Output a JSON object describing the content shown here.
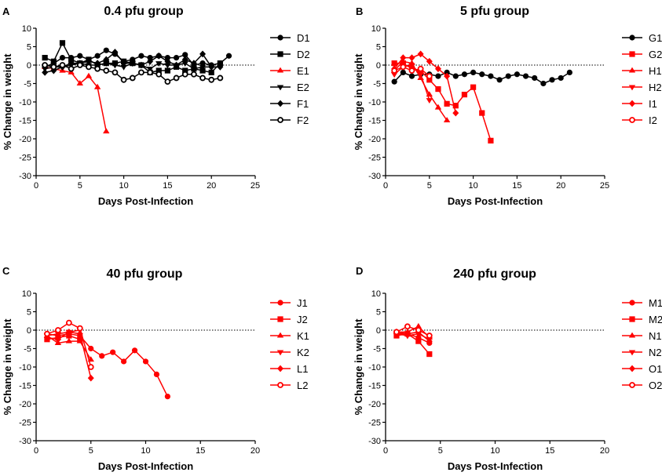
{
  "colors": {
    "black": "#000000",
    "red": "#ff0000"
  },
  "chart_data": [
    {
      "type": "line",
      "letter": "A",
      "title": "0.4 pfu group",
      "xlabel": "Days Post-Infection",
      "ylabel": "% Change in weight",
      "xlim": [
        0,
        25
      ],
      "xticks": [
        0,
        5,
        10,
        15,
        20,
        25
      ],
      "ylim": [
        -30,
        10
      ],
      "yticks": [
        10,
        5,
        0,
        -5,
        -10,
        -15,
        -20,
        -25,
        -30
      ],
      "reference_line": 0,
      "series": [
        {
          "name": "D1",
          "color": "#000000",
          "marker": "circle",
          "x": [
            1,
            2,
            3,
            4,
            5,
            6,
            7,
            8,
            9,
            10,
            11,
            12,
            13,
            14,
            15,
            16,
            17,
            18,
            19,
            20,
            21,
            22
          ],
          "y": [
            -0.5,
            0.5,
            2,
            2,
            2.5,
            1.5,
            2.5,
            4,
            3,
            1,
            1.5,
            2.5,
            2,
            2.5,
            2,
            2,
            2.8,
            0,
            0.5,
            0,
            0.5,
            2.5
          ]
        },
        {
          "name": "D2",
          "color": "#000000",
          "marker": "square",
          "x": [
            1,
            2,
            3,
            4,
            5,
            6,
            7,
            8,
            9,
            10,
            11,
            12,
            13,
            14,
            15,
            16,
            17,
            18,
            19,
            20,
            21
          ],
          "y": [
            2,
            1,
            6,
            1.5,
            0.5,
            1.5,
            0,
            0.5,
            0.5,
            1,
            0.5,
            0,
            -2,
            -1.5,
            -1.5,
            -0.5,
            -1.5,
            -1,
            -1.5,
            -2,
            0.5
          ]
        },
        {
          "name": "E1",
          "color": "#ff0000",
          "marker": "triangle-up",
          "x": [
            1,
            2,
            3,
            4,
            5,
            6,
            7,
            8
          ],
          "y": [
            -0.5,
            -1,
            -1.5,
            -2,
            -5,
            -3,
            -6,
            -18
          ]
        },
        {
          "name": "E2",
          "color": "#000000",
          "marker": "triangle-down",
          "x": [
            1,
            2,
            3,
            4,
            5,
            6,
            7,
            8,
            9,
            10,
            11,
            12,
            13,
            14,
            15,
            16,
            17,
            18,
            19,
            20,
            21
          ],
          "y": [
            -1,
            -0.5,
            -0.5,
            0,
            0.5,
            0,
            0,
            0.5,
            0,
            -0.5,
            0.5,
            0,
            -1,
            0.5,
            0,
            0,
            0.5,
            -1,
            -0.5,
            -0.5,
            -0.5
          ]
        },
        {
          "name": "F1",
          "color": "#000000",
          "marker": "diamond",
          "x": [
            1,
            2,
            3,
            4,
            5,
            6,
            7,
            8,
            9,
            10,
            11,
            12,
            13,
            14,
            15,
            16,
            17,
            18,
            19,
            20,
            21
          ],
          "y": [
            -2,
            -1.5,
            -0.5,
            0.5,
            0.5,
            1,
            0.5,
            1.5,
            3.5,
            0.5,
            0.5,
            0,
            1,
            2.5,
            1,
            0,
            1.5,
            0.5,
            3,
            -0.5,
            -0.5
          ]
        },
        {
          "name": "F2",
          "color": "#000000",
          "marker": "circle-open",
          "x": [
            1,
            2,
            3,
            4,
            5,
            6,
            7,
            8,
            9,
            10,
            11,
            12,
            13,
            14,
            15,
            16,
            17,
            18,
            19,
            20,
            21
          ],
          "y": [
            0,
            -0.5,
            0,
            -1,
            0,
            -0.5,
            -1,
            -1.5,
            -2,
            -4,
            -3.5,
            -2,
            -2,
            -2.5,
            -4.5,
            -3.5,
            -2.5,
            -2.5,
            -3.5,
            -4,
            -3.5
          ]
        }
      ]
    },
    {
      "type": "line",
      "letter": "B",
      "title": "5 pfu group",
      "xlabel": "Days Post-Infection",
      "ylabel": "% Change in weight",
      "xlim": [
        0,
        25
      ],
      "xticks": [
        0,
        5,
        10,
        15,
        20,
        25
      ],
      "ylim": [
        -30,
        10
      ],
      "yticks": [
        10,
        5,
        0,
        -5,
        -10,
        -15,
        -20,
        -25,
        -30
      ],
      "reference_line": 0,
      "series": [
        {
          "name": "G1",
          "color": "#000000",
          "marker": "circle",
          "x": [
            1,
            2,
            3,
            4,
            5,
            6,
            7,
            8,
            9,
            10,
            11,
            12,
            13,
            14,
            15,
            16,
            17,
            18,
            19,
            20,
            21
          ],
          "y": [
            -4.5,
            -2,
            -3,
            -2.5,
            -2.5,
            -3,
            -2,
            -3,
            -2.5,
            -2,
            -2.5,
            -3,
            -4,
            -3,
            -2.5,
            -3,
            -3.5,
            -5,
            -4,
            -3.5,
            -2
          ]
        },
        {
          "name": "G2",
          "color": "#ff0000",
          "marker": "square",
          "x": [
            1,
            2,
            3,
            4,
            5,
            6,
            7,
            8,
            9,
            10,
            11,
            12
          ],
          "y": [
            0.5,
            0.5,
            -1,
            -1.5,
            -4,
            -6.5,
            -10.5,
            -11,
            -8,
            -6,
            -13,
            -20.5
          ]
        },
        {
          "name": "H1",
          "color": "#ff0000",
          "marker": "triangle-up",
          "x": [
            1,
            2,
            3,
            4,
            5,
            6,
            7
          ],
          "y": [
            -1.5,
            1,
            0.5,
            -3.5,
            -8,
            -11.5,
            -15
          ]
        },
        {
          "name": "H2",
          "color": "#ff0000",
          "marker": "triangle-down",
          "x": [
            1,
            2,
            3,
            4,
            5
          ],
          "y": [
            -2.5,
            -0.5,
            0,
            -2.5,
            -9.5
          ]
        },
        {
          "name": "I1",
          "color": "#ff0000",
          "marker": "diamond",
          "x": [
            1,
            2,
            3,
            4,
            5,
            6,
            7,
            8
          ],
          "y": [
            -1,
            2,
            2,
            3,
            1,
            -1,
            -3,
            -13
          ]
        },
        {
          "name": "I2",
          "color": "#ff0000",
          "marker": "circle-open",
          "x": [
            1,
            2,
            3,
            4,
            5
          ],
          "y": [
            -1.5,
            -0.5,
            -1.5,
            -1,
            -3
          ]
        }
      ]
    },
    {
      "type": "line",
      "letter": "C",
      "title": "40 pfu group",
      "xlabel": "Days Post-Infection",
      "ylabel": "% Change in weight",
      "xlim": [
        0,
        20
      ],
      "xticks": [
        0,
        5,
        10,
        15,
        20
      ],
      "ylim": [
        -30,
        10
      ],
      "yticks": [
        10,
        5,
        0,
        -5,
        -10,
        -15,
        -20,
        -25,
        -30
      ],
      "reference_line": 0,
      "series": [
        {
          "name": "J1",
          "color": "#ff0000",
          "marker": "circle",
          "x": [
            1,
            2,
            3,
            4,
            5,
            6,
            7,
            8,
            9,
            10,
            11,
            12
          ],
          "y": [
            -1,
            -1.5,
            -1,
            -1.5,
            -5,
            -7,
            -6,
            -8.5,
            -5.5,
            -8.5,
            -12,
            -18
          ]
        },
        {
          "name": "J2",
          "color": "#ff0000",
          "marker": "square",
          "x": [
            1,
            2,
            3,
            4
          ],
          "y": [
            -2.5,
            -2,
            -1.5,
            -2.5
          ]
        },
        {
          "name": "K1",
          "color": "#ff0000",
          "marker": "triangle-up",
          "x": [
            1,
            2,
            3,
            4,
            5
          ],
          "y": [
            -1.5,
            -3.5,
            -3,
            -3,
            -8
          ]
        },
        {
          "name": "K2",
          "color": "#ff0000",
          "marker": "triangle-down",
          "x": [
            1,
            2,
            3,
            4
          ],
          "y": [
            -1.5,
            -1,
            -0.5,
            0
          ]
        },
        {
          "name": "L1",
          "color": "#ff0000",
          "marker": "diamond",
          "x": [
            1,
            2,
            3,
            4,
            5
          ],
          "y": [
            -2,
            -2.5,
            -0.5,
            -1,
            -13
          ]
        },
        {
          "name": "L2",
          "color": "#ff0000",
          "marker": "circle-open",
          "x": [
            1,
            2,
            3,
            4,
            5
          ],
          "y": [
            -1,
            0,
            2,
            0.5,
            -10
          ]
        }
      ]
    },
    {
      "type": "line",
      "letter": "D",
      "title": "240 pfu group",
      "xlabel": "Days Post-Infection",
      "ylabel": "% Change in weight",
      "xlim": [
        0,
        20
      ],
      "xticks": [
        0,
        5,
        10,
        15,
        20
      ],
      "ylim": [
        -30,
        10
      ],
      "yticks": [
        10,
        5,
        0,
        -5,
        -10,
        -15,
        -20,
        -25,
        -30
      ],
      "reference_line": 0,
      "series": [
        {
          "name": "M1",
          "color": "#ff0000",
          "marker": "circle",
          "x": [
            1,
            2,
            3,
            4
          ],
          "y": [
            -1,
            -1,
            -2,
            -3.5
          ]
        },
        {
          "name": "M2",
          "color": "#ff0000",
          "marker": "square",
          "x": [
            1,
            2,
            3,
            4
          ],
          "y": [
            -1.5,
            -1,
            -3,
            -6.5
          ]
        },
        {
          "name": "N1",
          "color": "#ff0000",
          "marker": "triangle-up",
          "x": [
            1,
            2,
            3,
            4
          ],
          "y": [
            -0.5,
            -0.5,
            1,
            -2
          ]
        },
        {
          "name": "N2",
          "color": "#ff0000",
          "marker": "triangle-down",
          "x": [
            1,
            2,
            3,
            4
          ],
          "y": [
            -1,
            -1.5,
            -1,
            -2.5
          ]
        },
        {
          "name": "O1",
          "color": "#ff0000",
          "marker": "diamond",
          "x": [
            1,
            2,
            3,
            4
          ],
          "y": [
            -0.5,
            -1,
            -0.5,
            -3
          ]
        },
        {
          "name": "O2",
          "color": "#ff0000",
          "marker": "circle-open",
          "x": [
            1,
            2,
            3,
            4
          ],
          "y": [
            -0.5,
            1,
            0,
            -1.5
          ]
        }
      ]
    }
  ]
}
